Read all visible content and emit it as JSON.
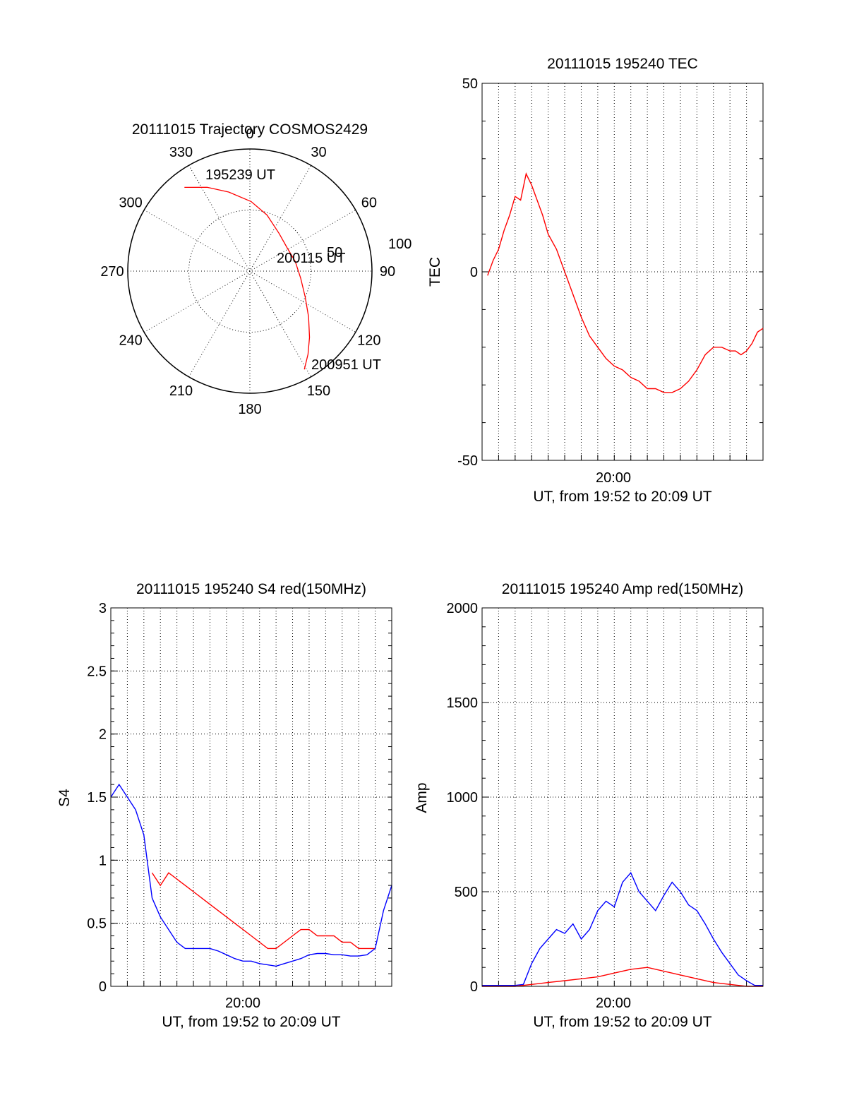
{
  "chart_data": [
    {
      "id": "trajectory",
      "type": "polar",
      "title": "20111015 Trajectory COSMOS2429",
      "angle_labels": [
        "0",
        "30",
        "60",
        "90",
        "120",
        "150",
        "180",
        "210",
        "240",
        "270",
        "300",
        "330"
      ],
      "radial_labels": [
        "50",
        "100"
      ],
      "rlim": [
        0,
        100
      ],
      "start_label": "195239 UT",
      "mid_label": "200115 UT",
      "end_label": "200951 UT",
      "series": [
        {
          "color": "#ff0000",
          "points": [
            [
              322,
              87
            ],
            [
              333,
              77
            ],
            [
              345,
              67
            ],
            [
              1,
              57
            ],
            [
              17,
              48
            ],
            [
              38,
              39
            ],
            [
              58,
              36
            ],
            [
              78,
              38
            ],
            [
              98,
              42
            ],
            [
              115,
              50
            ],
            [
              128,
              61
            ],
            [
              138,
              73
            ],
            [
              145,
              83
            ],
            [
              151,
              92
            ]
          ]
        }
      ]
    },
    {
      "id": "tec",
      "type": "line",
      "title": "20111015 195240 TEC",
      "ylabel": "TEC",
      "xlabel": "UT, from 19:52 to 20:09 UT",
      "xtick_label": "20:00",
      "x_range": [
        "19:52:00",
        "20:09:00"
      ],
      "ylim": [
        -50,
        50
      ],
      "yticks": [
        "50",
        "0",
        "-50"
      ],
      "series": [
        {
          "color": "#ff0000",
          "x": [
            "19:52:20",
            "19:52:40",
            "19:53:00",
            "19:53:20",
            "19:53:40",
            "19:54:00",
            "19:54:20",
            "19:54:40",
            "19:55:00",
            "19:55:20",
            "19:55:40",
            "19:56:00",
            "19:56:30",
            "19:57:00",
            "19:57:30",
            "19:58:00",
            "19:58:30",
            "19:59:00",
            "19:59:30",
            "20:00:00",
            "20:00:30",
            "20:01:00",
            "20:01:30",
            "20:02:00",
            "20:02:30",
            "20:03:00",
            "20:03:30",
            "20:04:00",
            "20:04:30",
            "20:05:00",
            "20:05:30",
            "20:06:00",
            "20:06:30",
            "20:07:00",
            "20:07:20",
            "20:07:40",
            "20:08:00",
            "20:08:20",
            "20:08:40",
            "20:09:00"
          ],
          "values": [
            -1,
            3,
            6,
            11,
            15,
            20,
            19,
            26,
            23,
            19,
            15,
            10,
            6,
            0,
            -6,
            -12,
            -17,
            -20,
            -23,
            -25,
            -26,
            -28,
            -29,
            -31,
            -31,
            -32,
            -32,
            -31,
            -29,
            -26,
            -22,
            -20,
            -20,
            -21,
            -21,
            -22,
            -21,
            -19,
            -16,
            -15
          ]
        }
      ]
    },
    {
      "id": "s4",
      "type": "line",
      "title": "20111015 195240 S4 red(150MHz)",
      "ylabel": "S4",
      "xlabel": "UT, from 19:52 to 20:09 UT",
      "xtick_label": "20:00",
      "x_range": [
        "19:52:00",
        "20:09:00"
      ],
      "ylim": [
        0,
        3
      ],
      "yticks": [
        "3",
        "2.5",
        "2",
        "1.5",
        "1",
        "0.5",
        "0"
      ],
      "series": [
        {
          "color": "#ff0000",
          "x": [
            "19:54:30",
            "19:55:00",
            "19:55:30",
            "19:56:00",
            "19:56:30",
            "19:57:00",
            "19:57:30",
            "19:58:00",
            "19:58:30",
            "19:59:00",
            "19:59:30",
            "20:00:00",
            "20:00:30",
            "20:01:00",
            "20:01:30",
            "20:02:00",
            "20:02:30",
            "20:03:00",
            "20:03:30",
            "20:04:00",
            "20:04:30",
            "20:05:00",
            "20:05:30",
            "20:06:00",
            "20:06:30",
            "20:07:00",
            "20:07:30",
            "20:08:00"
          ],
          "values": [
            0.9,
            0.8,
            0.9,
            0.85,
            0.8,
            0.75,
            0.7,
            0.65,
            0.6,
            0.55,
            0.5,
            0.45,
            0.4,
            0.35,
            0.3,
            0.3,
            0.35,
            0.4,
            0.45,
            0.45,
            0.4,
            0.4,
            0.4,
            0.35,
            0.35,
            0.3,
            0.3,
            0.3
          ]
        },
        {
          "color": "#0000ff",
          "x": [
            "19:52:00",
            "19:52:30",
            "19:53:00",
            "19:53:30",
            "19:54:00",
            "19:54:30",
            "19:55:00",
            "19:55:30",
            "19:56:00",
            "19:56:30",
            "19:57:00",
            "19:57:30",
            "19:58:00",
            "19:58:30",
            "19:59:00",
            "19:59:30",
            "20:00:00",
            "20:00:30",
            "20:01:00",
            "20:01:30",
            "20:02:00",
            "20:02:30",
            "20:03:00",
            "20:03:30",
            "20:04:00",
            "20:04:30",
            "20:05:00",
            "20:05:30",
            "20:06:00",
            "20:06:30",
            "20:07:00",
            "20:07:30",
            "20:08:00",
            "20:08:30",
            "20:09:00"
          ],
          "values": [
            1.5,
            1.6,
            1.5,
            1.4,
            1.2,
            0.7,
            0.55,
            0.45,
            0.35,
            0.3,
            0.3,
            0.3,
            0.3,
            0.28,
            0.25,
            0.22,
            0.2,
            0.2,
            0.18,
            0.17,
            0.16,
            0.18,
            0.2,
            0.22,
            0.25,
            0.26,
            0.26,
            0.25,
            0.25,
            0.24,
            0.24,
            0.25,
            0.3,
            0.6,
            0.8
          ]
        }
      ]
    },
    {
      "id": "amp",
      "type": "line",
      "title": "20111015 195240 Amp red(150MHz)",
      "ylabel": "Amp",
      "xlabel": "UT, from 19:52 to 20:09 UT",
      "xtick_label": "20:00",
      "x_range": [
        "19:52:00",
        "20:09:00"
      ],
      "ylim": [
        0,
        2000
      ],
      "yticks": [
        "2000",
        "1500",
        "1000",
        "500",
        "0"
      ],
      "series": [
        {
          "color": "#0000ff",
          "x": [
            "19:52:00",
            "19:53:00",
            "19:54:00",
            "19:54:30",
            "19:55:00",
            "19:55:30",
            "19:56:00",
            "19:56:30",
            "19:57:00",
            "19:57:30",
            "19:58:00",
            "19:58:30",
            "19:59:00",
            "19:59:30",
            "20:00:00",
            "20:00:30",
            "20:01:00",
            "20:01:30",
            "20:02:00",
            "20:02:30",
            "20:03:00",
            "20:03:30",
            "20:04:00",
            "20:04:30",
            "20:05:00",
            "20:05:30",
            "20:06:00",
            "20:06:30",
            "20:07:00",
            "20:07:30",
            "20:08:00",
            "20:08:30",
            "20:09:00"
          ],
          "values": [
            5,
            5,
            5,
            10,
            120,
            200,
            250,
            300,
            280,
            330,
            250,
            300,
            400,
            450,
            420,
            550,
            600,
            500,
            450,
            400,
            480,
            550,
            500,
            430,
            400,
            330,
            250,
            180,
            120,
            60,
            30,
            5,
            5
          ]
        },
        {
          "color": "#ff0000",
          "x": [
            "19:52:00",
            "19:54:00",
            "19:55:00",
            "19:56:00",
            "19:57:00",
            "19:58:00",
            "19:59:00",
            "20:00:00",
            "20:01:00",
            "20:02:00",
            "20:03:00",
            "20:04:00",
            "20:05:00",
            "20:06:00",
            "20:07:00",
            "20:08:00",
            "20:09:00"
          ],
          "values": [
            0,
            0,
            10,
            20,
            30,
            40,
            50,
            70,
            90,
            100,
            80,
            60,
            40,
            20,
            10,
            0,
            0
          ]
        }
      ]
    }
  ]
}
